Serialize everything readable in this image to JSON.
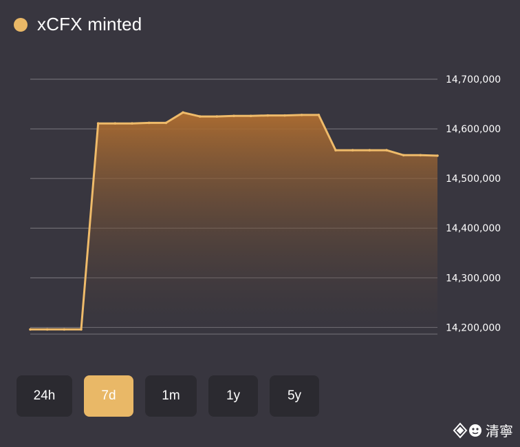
{
  "legend": {
    "label": "xCFX minted",
    "dot_color": "#e9b867"
  },
  "range_selector": {
    "options": [
      "24h",
      "7d",
      "1m",
      "1y",
      "5y"
    ],
    "selected": "7d"
  },
  "watermark": {
    "text": "清寧"
  },
  "colors": {
    "background": "#38363f",
    "line": "#efbb6a",
    "fill_top": "#b06e30",
    "grid": "#7c7a80",
    "button_bg": "#2b2a30",
    "button_active": "#e9b867"
  },
  "chart_data": {
    "type": "area",
    "title": "xCFX minted",
    "xlabel": "",
    "ylabel": "",
    "ylim": [
      14195000,
      14700000
    ],
    "yticks": [
      14200000,
      14300000,
      14400000,
      14500000,
      14600000,
      14700000
    ],
    "ytick_labels": [
      "14,200,000",
      "14,300,000",
      "14,400,000",
      "14,500,000",
      "14,600,000",
      "14,700,000"
    ],
    "grid": true,
    "series": [
      {
        "name": "xCFX minted",
        "x": [
          0,
          1,
          2,
          3,
          4,
          5,
          6,
          7,
          8,
          9,
          10,
          11,
          12,
          13,
          14,
          15,
          16,
          17,
          18,
          19,
          20,
          21,
          22,
          23,
          24
        ],
        "values": [
          14196000,
          14196000,
          14196000,
          14196000,
          14611000,
          14611000,
          14611000,
          14612000,
          14612000,
          14633000,
          14625000,
          14625000,
          14626000,
          14626000,
          14627000,
          14627000,
          14628000,
          14628000,
          14557000,
          14557000,
          14557000,
          14557000,
          14547000,
          14547000,
          14546000
        ]
      }
    ]
  }
}
